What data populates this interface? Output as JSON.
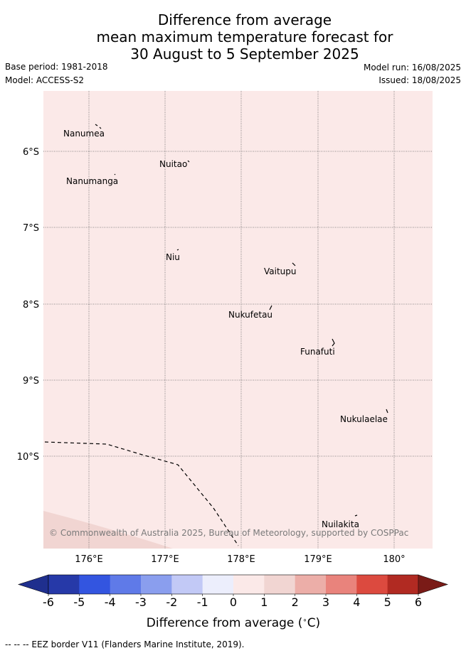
{
  "title": {
    "line1": "Difference from average",
    "line2": "mean maximum temperature forecast for",
    "line3": "30 August to 5 September 2025"
  },
  "meta": {
    "base_period": "Base period: 1981-2018",
    "model": "Model: ACCESS-S2",
    "model_run": "Model run: 16/08/2025",
    "issued": "Issued: 18/08/2025"
  },
  "map": {
    "background_color": "#fbe9e8",
    "lower_left_anomaly_color": "#f1d5d2",
    "lon_ticks": [
      "176°E",
      "177°E",
      "178°E",
      "179°E",
      "180°"
    ],
    "lat_ticks": [
      "6°S",
      "7°S",
      "8°S",
      "9°S",
      "10°S"
    ],
    "places": [
      {
        "name": "Nanumea"
      },
      {
        "name": "Nuitao"
      },
      {
        "name": "Nanumanga"
      },
      {
        "name": "Niu"
      },
      {
        "name": "Vaitupu"
      },
      {
        "name": "Nukufetau"
      },
      {
        "name": "Funafuti"
      },
      {
        "name": "Nukulaelae"
      },
      {
        "name": "Nuilakita"
      }
    ],
    "copyright": "© Commonwealth of Australia 2025, Bureau of Meteorology, supported by COSPPac"
  },
  "colorbar": {
    "ticks": [
      "-6",
      "-5",
      "-4",
      "-3",
      "-2",
      "-1",
      "0",
      "1",
      "2",
      "3",
      "4",
      "5",
      "6"
    ],
    "colors": [
      "#2639a8",
      "#3355e0",
      "#5f7ae8",
      "#8a9eee",
      "#c2c9f6",
      "#eceefc",
      "#fbe9e8",
      "#f1d5d2",
      "#ecaea8",
      "#e9837c",
      "#dc4a3f",
      "#b12a22"
    ],
    "under_color": "#1f2f8e",
    "over_color": "#7a1b17",
    "title": "Difference from average ($^\\circ$C)",
    "title_text": "Difference from average (",
    "title_deg": "∘",
    "title_unit": "C)"
  },
  "footer": "--  --  -- EEZ border V11 (Flanders Marine Institute, 2019)."
}
